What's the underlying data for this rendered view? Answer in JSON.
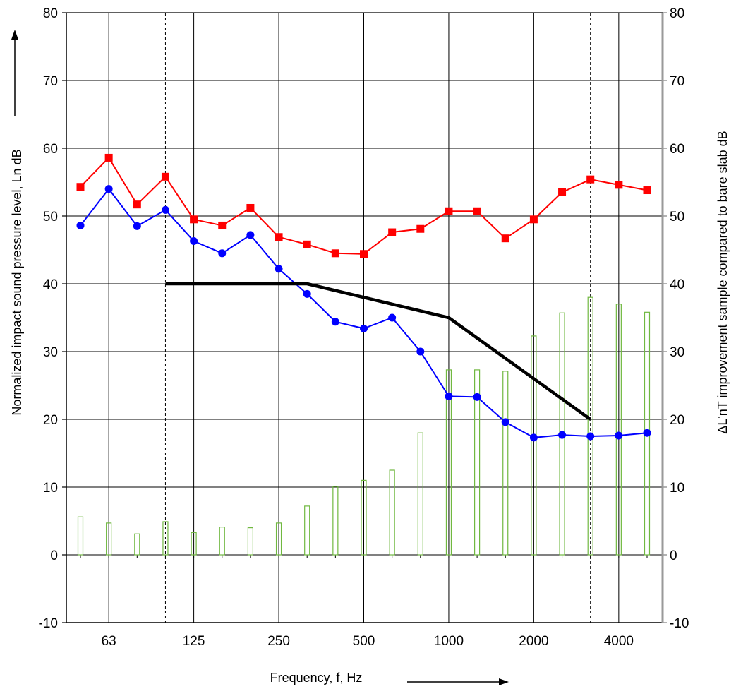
{
  "chart_data": {
    "type": "line",
    "title": "",
    "xlabel": "Frequency, f, Hz",
    "ylabel": "Normalized impact sound pressure level, Ln dB",
    "y2label": "ΔL'nT improvement sample compared to bare slab dB",
    "ylim": [
      -10,
      80
    ],
    "y2lim": [
      -10,
      80
    ],
    "yticks": [
      -10,
      0,
      10,
      20,
      30,
      40,
      50,
      60,
      70,
      80
    ],
    "y2ticks": [
      -10,
      0,
      10,
      20,
      30,
      40,
      50,
      60,
      70,
      80
    ],
    "x_scale": "third-octave bands",
    "x": [
      50,
      63,
      80,
      100,
      125,
      160,
      200,
      250,
      315,
      400,
      500,
      630,
      800,
      1000,
      1250,
      1600,
      2000,
      2500,
      3150,
      4000,
      5000
    ],
    "xtick_labels": [
      "63",
      "125",
      "250",
      "500",
      "1000",
      "2000",
      "4000"
    ],
    "grid": true,
    "series": [
      {
        "type": "line",
        "marker": "square",
        "color": "#ff0000",
        "values": [
          54.3,
          58.6,
          51.7,
          55.8,
          49.5,
          48.6,
          51.2,
          46.9,
          45.8,
          44.5,
          44.4,
          47.6,
          48.1,
          50.7,
          50.7,
          46.7,
          49.5,
          53.5,
          55.4,
          54.6,
          53.8
        ]
      },
      {
        "type": "line",
        "marker": "circle",
        "color": "#0000ff",
        "values": [
          48.6,
          54.0,
          48.5,
          50.9,
          46.3,
          44.5,
          47.2,
          42.2,
          38.5,
          34.4,
          33.4,
          35.0,
          30.0,
          23.4,
          23.3,
          19.6,
          17.3,
          17.7,
          17.5,
          17.6,
          18.0
        ]
      },
      {
        "type": "line",
        "color": "#000000",
        "x": [
          100,
          315,
          1000,
          3150
        ],
        "values": [
          40,
          40,
          35,
          20
        ]
      },
      {
        "type": "bar",
        "axis": "right",
        "color": "#70b840",
        "values": [
          5.6,
          4.7,
          3.1,
          4.9,
          3.3,
          4.1,
          4.0,
          4.7,
          7.2,
          10.1,
          11.0,
          12.5,
          18.0,
          27.3,
          27.3,
          27.1,
          32.3,
          35.7,
          38.0,
          37.0,
          35.8
        ]
      }
    ],
    "vertical_dashed_lines_at": [
      100,
      3150
    ]
  }
}
